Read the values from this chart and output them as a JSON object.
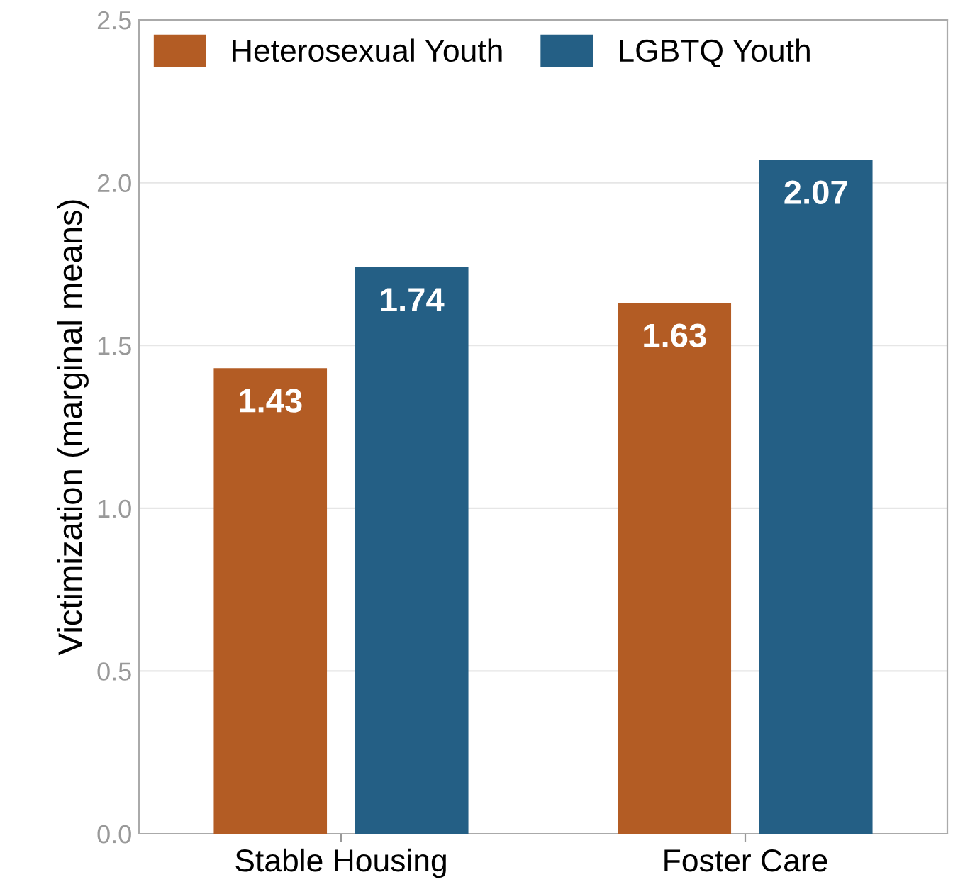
{
  "chart_data": {
    "type": "bar",
    "ylabel": "Victimization (marginal means)",
    "categories": [
      "Stable Housing",
      "Foster Care"
    ],
    "series": [
      {
        "name": "Heterosexual Youth",
        "color": "#b35c24",
        "values": [
          1.43,
          1.63
        ]
      },
      {
        "name": "LGBTQ Youth",
        "color": "#245f85",
        "values": [
          1.74,
          2.07
        ]
      }
    ],
    "ylim": [
      0,
      2.5
    ],
    "yticks": [
      "0.0",
      "0.5",
      "1.0",
      "1.5",
      "2.0",
      "2.5"
    ],
    "grid": "y",
    "legend": "top left",
    "data_labels": true
  }
}
